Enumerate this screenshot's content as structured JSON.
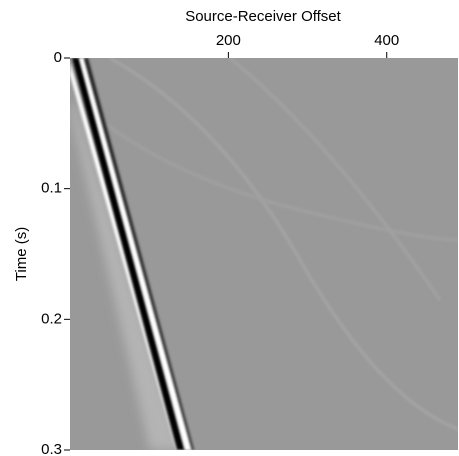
{
  "chart_data": {
    "type": "image",
    "xlabel": "Source-Receiver Offset",
    "ylabel": "Time (s)",
    "xlim": [
      0,
      490
    ],
    "xticks": [
      200,
      400
    ],
    "ylim": [
      0,
      0.3
    ],
    "yticks": [
      0,
      0.1,
      0.2,
      0.3
    ]
  }
}
